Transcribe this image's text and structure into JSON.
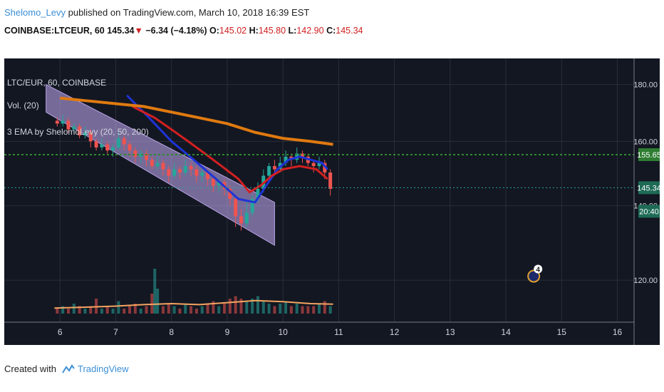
{
  "header": {
    "author": "Shelomo_Levy",
    "published_text": " published on TradingView.com, March 10, 2018 16:39 EST",
    "symbol": "COINBASE:LTCEUR, 60",
    "price": "145.34",
    "change_arrow": "▼",
    "change": "−6.34 (−4.18%)",
    "open_label": "O:",
    "open": "145.02",
    "high_label": "H:",
    "high": "145.80",
    "low_label": "L:",
    "low": "142.90",
    "close_label": "C:",
    "close": "145.34"
  },
  "legend": {
    "symbol_line": "LTC/EUR, 60, COINBASE",
    "volume_line": "Vol. (20)",
    "ema_line": "3 EMA by ShelomoLevy (20, 50, 200)"
  },
  "price_tags": {
    "green_level": "155.65",
    "current_price": "145.34",
    "countdown": "20:40"
  },
  "event_badge": "4",
  "footer": {
    "created_with": "Created with",
    "brand": "TradingView"
  },
  "colors": {
    "background": "#131722",
    "grid": "#2a2e39",
    "up": "#26a69a",
    "down": "#ef5350",
    "ema20": "#1f33d6",
    "ema50": "#d32020",
    "ema200": "#e07a10",
    "channel": "#b9a3e8",
    "green_level": "#2e8b2e",
    "current_line": "#26a69a"
  },
  "chart_data": {
    "type": "candlestick",
    "x_axis": {
      "ticks": [
        "6",
        "7",
        "8",
        "9",
        "10",
        "11",
        "12",
        "13",
        "14",
        "15",
        "16"
      ],
      "range": [
        5.0,
        16.3
      ]
    },
    "y_axis": {
      "ticks": [
        "120.00",
        "140.00",
        "160.00",
        "180.00"
      ],
      "scale": "log",
      "range": [
        110,
        190
      ]
    },
    "grid": true,
    "horizontal_levels": [
      155.65,
      145.34
    ],
    "series": [
      {
        "name": "EMA 20",
        "color": "ema20",
        "points": [
          [
            7.2,
            176
          ],
          [
            7.6,
            168
          ],
          [
            8.0,
            160
          ],
          [
            8.4,
            154
          ],
          [
            8.8,
            148
          ],
          [
            9.2,
            142
          ],
          [
            9.5,
            141
          ],
          [
            9.7,
            146
          ],
          [
            9.9,
            151
          ],
          [
            10.1,
            154
          ],
          [
            10.3,
            155
          ],
          [
            10.5,
            154
          ],
          [
            10.7,
            153
          ],
          [
            10.8,
            151
          ]
        ]
      },
      {
        "name": "EMA 50",
        "color": "ema50",
        "points": [
          [
            7.3,
            172
          ],
          [
            7.7,
            168
          ],
          [
            8.0,
            164
          ],
          [
            8.3,
            160
          ],
          [
            8.6,
            156
          ],
          [
            8.9,
            152
          ],
          [
            9.2,
            148
          ],
          [
            9.4,
            144
          ],
          [
            9.6,
            146
          ],
          [
            9.8,
            149
          ],
          [
            10.0,
            151
          ],
          [
            10.3,
            152
          ],
          [
            10.6,
            151
          ],
          [
            10.8,
            148
          ]
        ]
      },
      {
        "name": "EMA 200",
        "color": "ema200",
        "points": [
          [
            6.0,
            175
          ],
          [
            6.5,
            174
          ],
          [
            7.0,
            173
          ],
          [
            7.5,
            172
          ],
          [
            8.0,
            170
          ],
          [
            8.5,
            168
          ],
          [
            9.0,
            166
          ],
          [
            9.5,
            163
          ],
          [
            10.0,
            161
          ],
          [
            10.5,
            160
          ],
          [
            10.9,
            159
          ]
        ]
      }
    ],
    "channel": {
      "upper": [
        [
          5.75,
          180
        ],
        [
          9.85,
          141
        ]
      ],
      "lower": [
        [
          5.75,
          170
        ],
        [
          9.85,
          129
        ]
      ]
    },
    "candles": [
      [
        5.95,
        167,
        166,
        168,
        165
      ],
      [
        6.05,
        166,
        167,
        169,
        165
      ],
      [
        6.15,
        167,
        164,
        168,
        163
      ],
      [
        6.25,
        164,
        165,
        166,
        163
      ],
      [
        6.35,
        165,
        162,
        166,
        161
      ],
      [
        6.45,
        162,
        163,
        165,
        161
      ],
      [
        6.55,
        163,
        160,
        164,
        158
      ],
      [
        6.65,
        160,
        158,
        161,
        157
      ],
      [
        6.75,
        158,
        159,
        161,
        157
      ],
      [
        6.85,
        159,
        157,
        160,
        156
      ],
      [
        6.95,
        157,
        158,
        159,
        155
      ],
      [
        7.05,
        158,
        161,
        163,
        157
      ],
      [
        7.15,
        161,
        159,
        162,
        157
      ],
      [
        7.25,
        159,
        157,
        160,
        155
      ],
      [
        7.35,
        157,
        155,
        158,
        153
      ],
      [
        7.45,
        155,
        156,
        157,
        153
      ],
      [
        7.55,
        156,
        154,
        157,
        152
      ],
      [
        7.65,
        154,
        152,
        155,
        151
      ],
      [
        7.75,
        152,
        153,
        155,
        151
      ],
      [
        7.85,
        153,
        151,
        154,
        149
      ],
      [
        7.95,
        151,
        149,
        152,
        147
      ],
      [
        8.05,
        149,
        151,
        153,
        148
      ],
      [
        8.15,
        151,
        150,
        152,
        148
      ],
      [
        8.25,
        150,
        152,
        154,
        149
      ],
      [
        8.35,
        152,
        151,
        153,
        149
      ],
      [
        8.45,
        151,
        149,
        152,
        147
      ],
      [
        8.55,
        149,
        150,
        151,
        147
      ],
      [
        8.65,
        150,
        148,
        151,
        146
      ],
      [
        8.75,
        148,
        146,
        149,
        144
      ],
      [
        8.85,
        146,
        147,
        148,
        144
      ],
      [
        8.95,
        147,
        145,
        148,
        143
      ],
      [
        9.05,
        145,
        142,
        146,
        140
      ],
      [
        9.15,
        142,
        137,
        143,
        134
      ],
      [
        9.25,
        137,
        135,
        139,
        133
      ],
      [
        9.35,
        135,
        138,
        141,
        134
      ],
      [
        9.45,
        138,
        142,
        143,
        137
      ],
      [
        9.55,
        142,
        145,
        147,
        141
      ],
      [
        9.65,
        145,
        149,
        151,
        144
      ],
      [
        9.75,
        149,
        152,
        153,
        148
      ],
      [
        9.85,
        152,
        151,
        154,
        149
      ],
      [
        9.95,
        151,
        153,
        155,
        150
      ],
      [
        10.05,
        153,
        155,
        157,
        152
      ],
      [
        10.15,
        155,
        154,
        156,
        152
      ],
      [
        10.25,
        154,
        156,
        158,
        153
      ],
      [
        10.35,
        156,
        155,
        157,
        153
      ],
      [
        10.45,
        155,
        153,
        156,
        152
      ],
      [
        10.55,
        153,
        152,
        154,
        150
      ],
      [
        10.65,
        152,
        153,
        155,
        151
      ],
      [
        10.75,
        153,
        150,
        154,
        148
      ],
      [
        10.85,
        150,
        145,
        151,
        143
      ]
    ],
    "volume": [
      [
        5.95,
        1,
        "down"
      ],
      [
        6.05,
        1.5,
        "up"
      ],
      [
        6.15,
        1,
        "down"
      ],
      [
        6.25,
        2,
        "up"
      ],
      [
        6.35,
        1.5,
        "down"
      ],
      [
        6.45,
        1,
        "up"
      ],
      [
        6.55,
        1.5,
        "down"
      ],
      [
        6.65,
        3,
        "down"
      ],
      [
        6.75,
        1,
        "up"
      ],
      [
        6.85,
        1.5,
        "down"
      ],
      [
        6.95,
        1,
        "up"
      ],
      [
        7.05,
        2.5,
        "up"
      ],
      [
        7.15,
        1,
        "down"
      ],
      [
        7.25,
        1.5,
        "down"
      ],
      [
        7.35,
        2,
        "down"
      ],
      [
        7.45,
        1,
        "up"
      ],
      [
        7.55,
        1.5,
        "down"
      ],
      [
        7.65,
        4,
        "down"
      ],
      [
        7.7,
        9,
        "up"
      ],
      [
        7.75,
        5,
        "up"
      ],
      [
        7.85,
        1.5,
        "down"
      ],
      [
        7.95,
        2,
        "down"
      ],
      [
        8.05,
        1.5,
        "up"
      ],
      [
        8.15,
        1,
        "down"
      ],
      [
        8.25,
        2,
        "up"
      ],
      [
        8.35,
        1.5,
        "down"
      ],
      [
        8.45,
        1,
        "down"
      ],
      [
        8.55,
        1.5,
        "up"
      ],
      [
        8.65,
        2,
        "down"
      ],
      [
        8.75,
        2.5,
        "down"
      ],
      [
        8.85,
        1.5,
        "up"
      ],
      [
        8.95,
        2,
        "down"
      ],
      [
        9.05,
        3,
        "down"
      ],
      [
        9.15,
        3.5,
        "down"
      ],
      [
        9.25,
        3,
        "down"
      ],
      [
        9.35,
        2.5,
        "up"
      ],
      [
        9.45,
        3,
        "up"
      ],
      [
        9.55,
        3.5,
        "up"
      ],
      [
        9.65,
        2.5,
        "up"
      ],
      [
        9.75,
        2,
        "up"
      ],
      [
        9.85,
        1.5,
        "down"
      ],
      [
        9.95,
        2,
        "up"
      ],
      [
        10.05,
        2.5,
        "up"
      ],
      [
        10.15,
        1.5,
        "down"
      ],
      [
        10.25,
        2,
        "up"
      ],
      [
        10.35,
        1.5,
        "down"
      ],
      [
        10.45,
        1.5,
        "down"
      ],
      [
        10.55,
        1.5,
        "down"
      ],
      [
        10.65,
        2,
        "up"
      ],
      [
        10.75,
        2.5,
        "down"
      ],
      [
        10.85,
        1.5,
        "up"
      ]
    ],
    "volume_ma": [
      [
        5.9,
        1.1
      ],
      [
        6.5,
        1.3
      ],
      [
        7.0,
        1.5
      ],
      [
        7.5,
        1.8
      ],
      [
        8.0,
        2.0
      ],
      [
        8.5,
        1.8
      ],
      [
        9.0,
        2.2
      ],
      [
        9.5,
        2.6
      ],
      [
        10.0,
        2.4
      ],
      [
        10.5,
        2.0
      ],
      [
        10.9,
        1.9
      ]
    ],
    "event_marker": {
      "x": 14.5,
      "y": 121
    }
  }
}
